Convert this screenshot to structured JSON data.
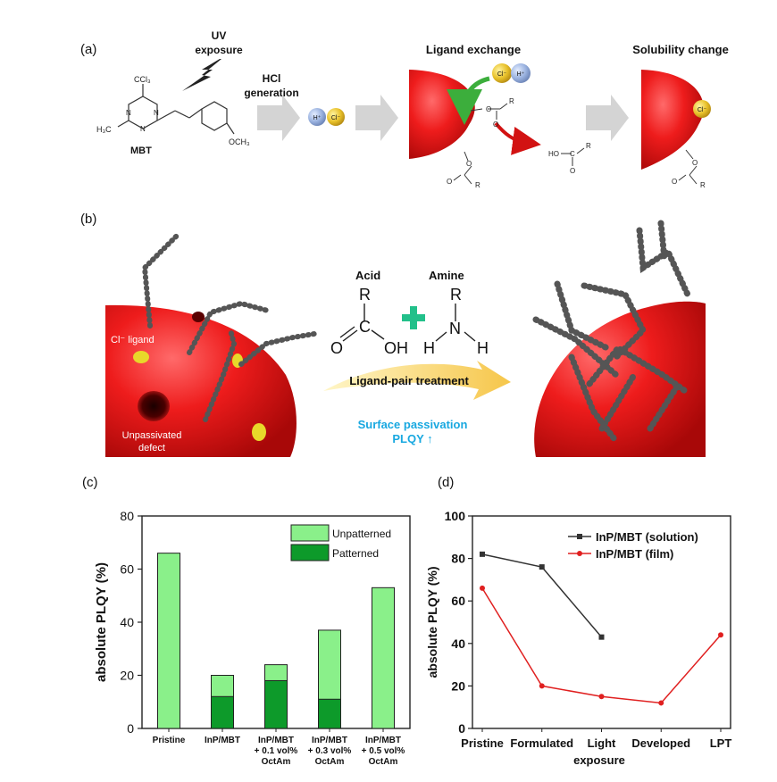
{
  "panel_a": {
    "label": "(a)",
    "uv": [
      "UV",
      "exposure"
    ],
    "hcl": [
      "HCl",
      "generation"
    ],
    "mbt_label": "MBT",
    "ligand_exchange_title": "Ligand exchange",
    "solubility_title": "Solubility change",
    "molecule": {
      "ccl3": "CCl₃",
      "h3c": "H₃C",
      "och3": "OCH₃",
      "n": "N"
    },
    "ions": {
      "h": "H⁺",
      "cl": "Cl⁻"
    },
    "chem": {
      "o": "O",
      "r": "R",
      "c": "C",
      "ho": "HO"
    }
  },
  "panel_b": {
    "label": "(b)",
    "acid": "Acid",
    "amine": "Amine",
    "ligand_pair": "Ligand-pair treatment",
    "surface_passivation": "Surface passivation",
    "plqy_up": "PLQY ↑",
    "cl_ligand": "Cl⁻ ligand",
    "unpassivated": [
      "Unpassivated",
      "defect"
    ],
    "acid_atoms": {
      "r": "R",
      "c": "C",
      "o": "O",
      "oh": "OH"
    },
    "amine_atoms": {
      "r": "R",
      "n": "N",
      "h1": "H",
      "h2": "H"
    }
  },
  "chart_c": {
    "label": "(c)",
    "type": "bar",
    "ylabel": "absolute PLQY (%)",
    "ylim": [
      0,
      80
    ],
    "yticks": [
      "0",
      "20",
      "40",
      "60",
      "80"
    ],
    "categories": [
      [
        "Pristine"
      ],
      [
        "InP/MBT"
      ],
      [
        "InP/MBT",
        "+ 0.1 vol%",
        "OctAm"
      ],
      [
        "InP/MBT",
        "+ 0.3 vol%",
        "OctAm"
      ],
      [
        "InP/MBT",
        "+ 0.5 vol%",
        "OctAm"
      ]
    ],
    "series": [
      {
        "name": "Unpatterned",
        "values": [
          66,
          20,
          24,
          37,
          53
        ],
        "color": "#8af08a"
      },
      {
        "name": "Patterned",
        "values": [
          null,
          12,
          18,
          11,
          null
        ],
        "color": "#0d9a2a"
      }
    ],
    "legend_position": "top-right"
  },
  "chart_d": {
    "label": "(d)",
    "type": "line",
    "ylabel": "absolute PLQY (%)",
    "xlabel_second_line": "exposure",
    "ylim": [
      0,
      100
    ],
    "yticks": [
      "0",
      "20",
      "40",
      "60",
      "80",
      "100"
    ],
    "categories": [
      "Pristine",
      "Formulated",
      "Light",
      "Developed",
      "LPT"
    ],
    "series": [
      {
        "name": "InP/MBT (solution)",
        "values": [
          82,
          76,
          43,
          null,
          null
        ],
        "color": "#333333",
        "marker": "square"
      },
      {
        "name": "InP/MBT (film)",
        "values": [
          66,
          20,
          15,
          12,
          44
        ],
        "color": "#e02020",
        "marker": "circle"
      }
    ],
    "legend_position": "top-right"
  },
  "chart_data": [
    {
      "type": "bar",
      "categories": [
        "Pristine",
        "InP/MBT",
        "InP/MBT + 0.1 vol% OctAm",
        "InP/MBT + 0.3 vol% OctAm",
        "InP/MBT + 0.5 vol% OctAm"
      ],
      "series": [
        {
          "name": "Unpatterned",
          "values": [
            66,
            20,
            24,
            37,
            53
          ]
        },
        {
          "name": "Patterned",
          "values": [
            null,
            12,
            18,
            11,
            null
          ]
        }
      ],
      "ylabel": "absolute PLQY (%)",
      "ylim": [
        0,
        80
      ]
    },
    {
      "type": "line",
      "categories": [
        "Pristine",
        "Formulated",
        "Light exposure",
        "Developed",
        "LPT"
      ],
      "series": [
        {
          "name": "InP/MBT (solution)",
          "values": [
            82,
            76,
            43,
            null,
            null
          ]
        },
        {
          "name": "InP/MBT (film)",
          "values": [
            66,
            20,
            15,
            12,
            44
          ]
        }
      ],
      "ylabel": "absolute PLQY (%)",
      "ylim": [
        0,
        100
      ]
    }
  ]
}
